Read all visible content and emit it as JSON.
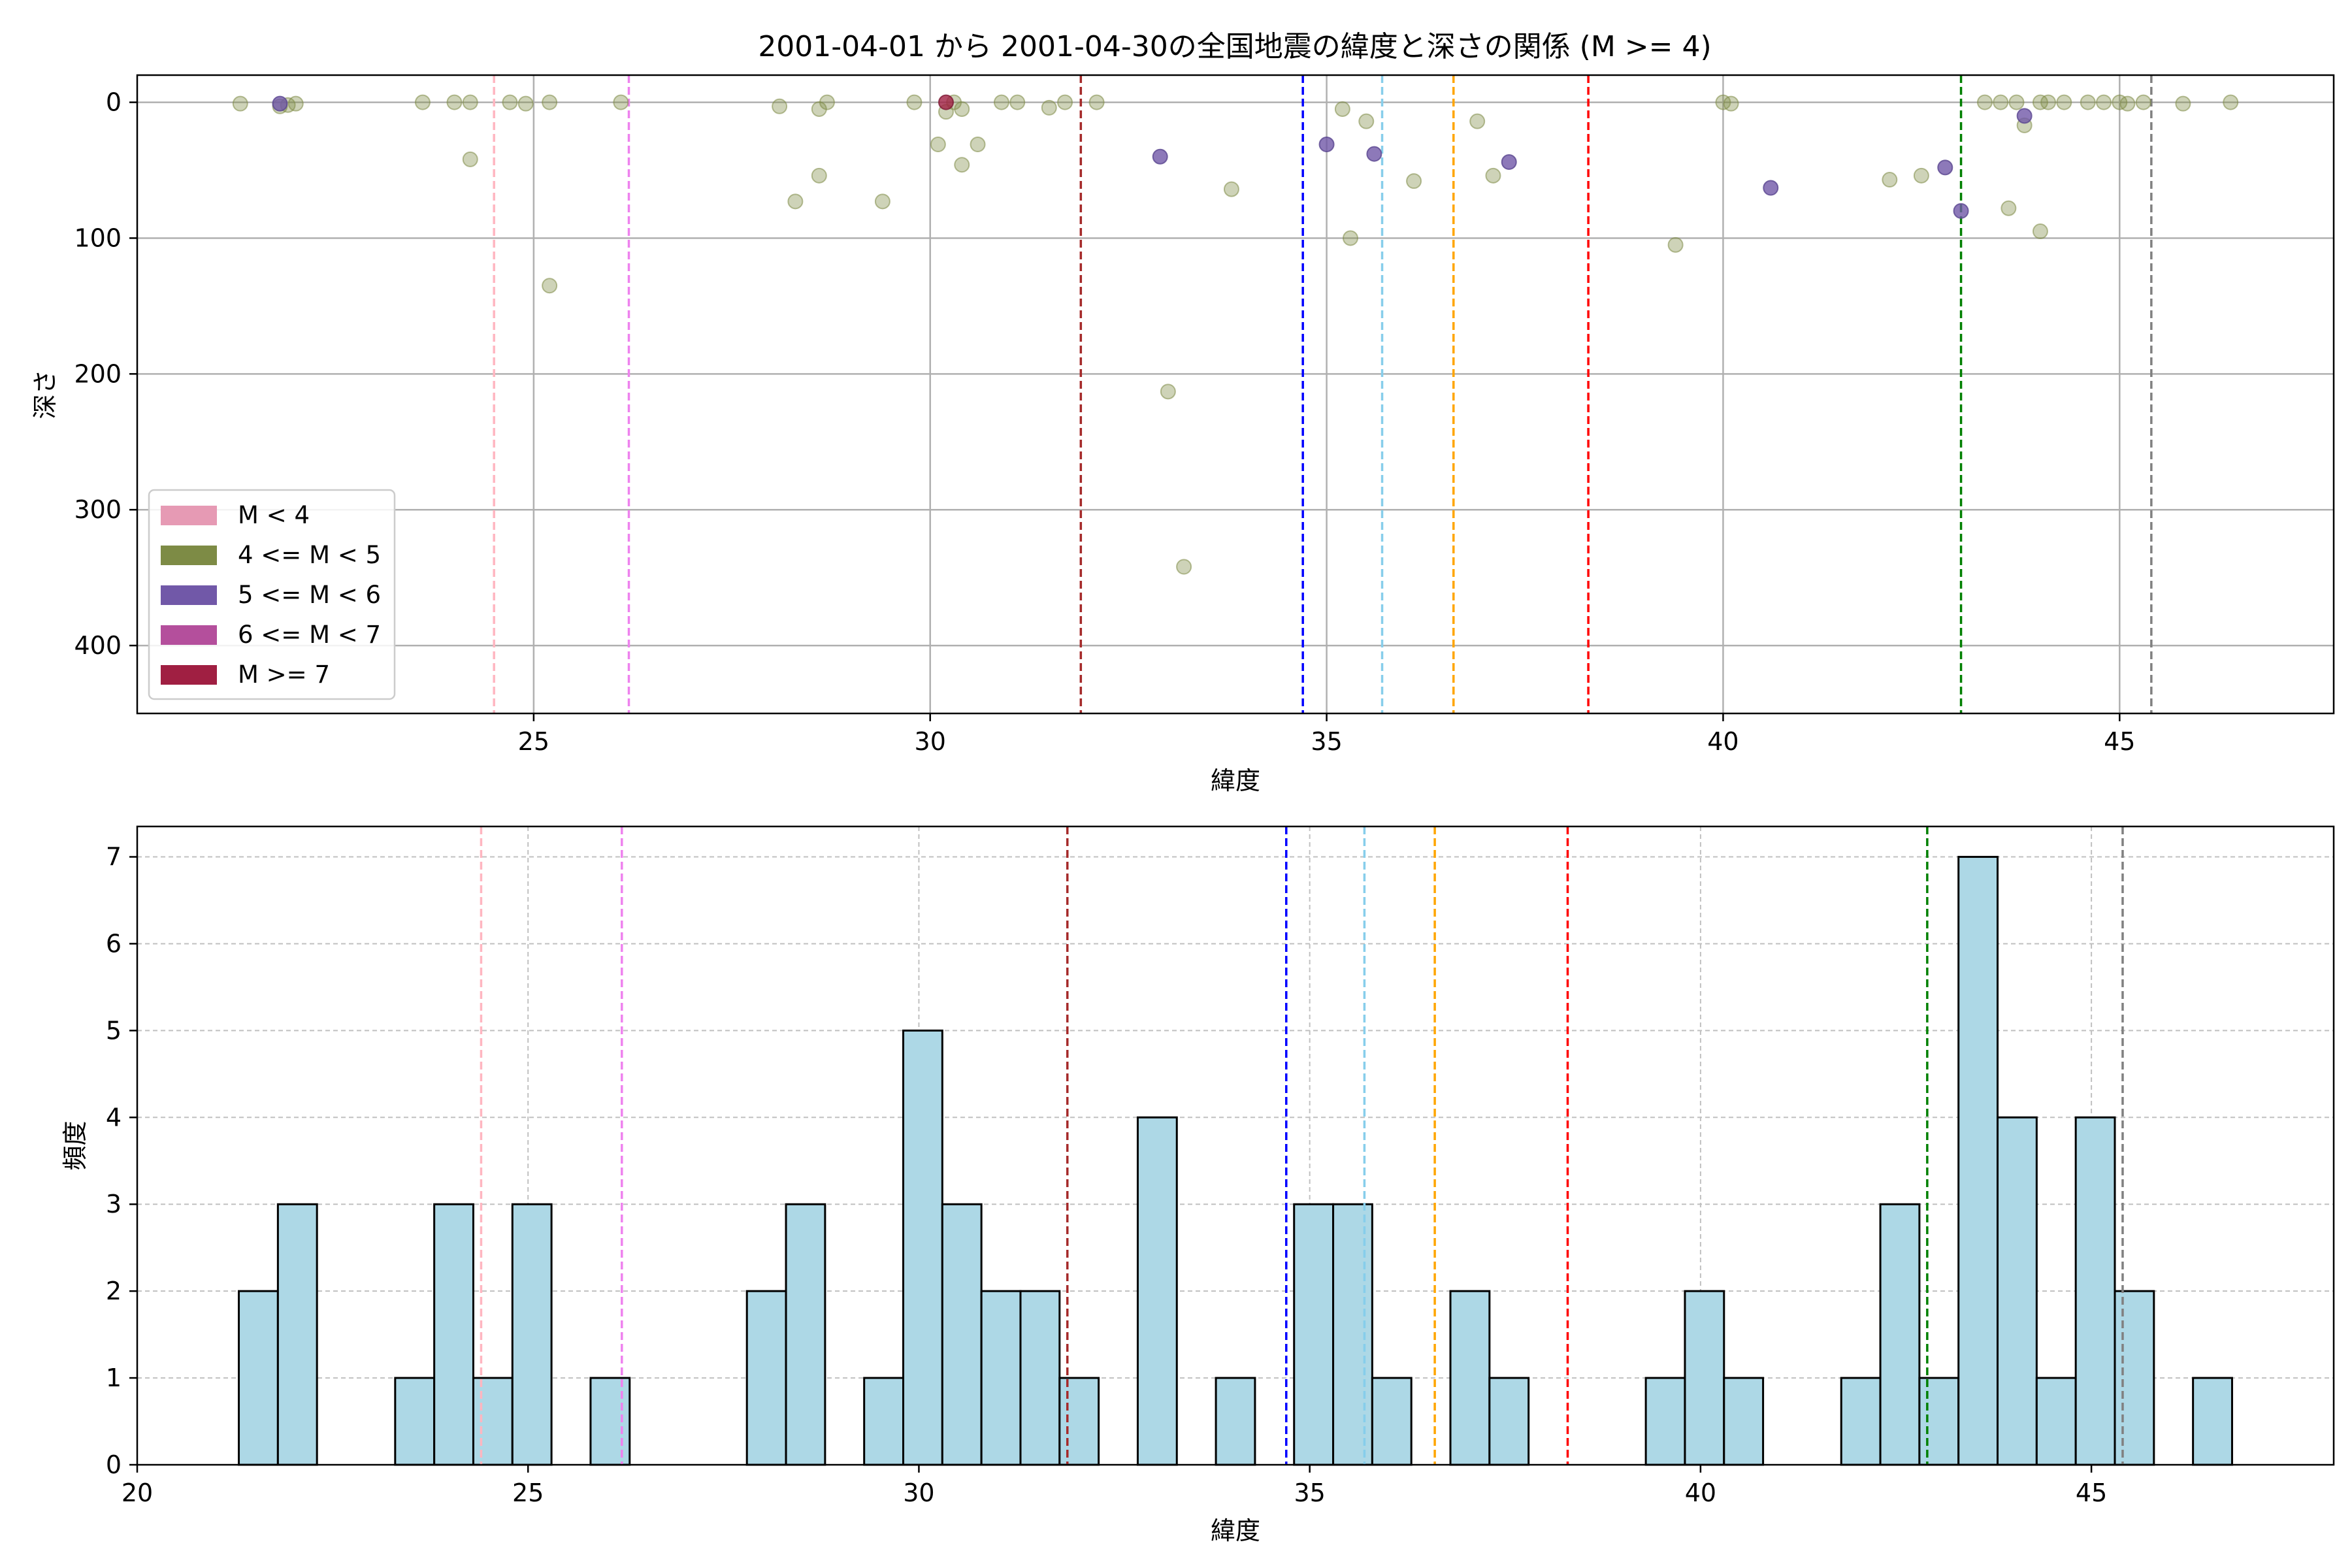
{
  "figure": {
    "title": "2001-04-01 から 2001-04-30の全国地震の緯度と深さの関係 (M >= 4)"
  },
  "chart_data": [
    {
      "type": "scatter",
      "xlabel": "緯度",
      "ylabel": "深さ",
      "xlim": [
        20.0,
        47.7
      ],
      "ylim": [
        450,
        -20
      ],
      "y_inverted": true,
      "xticks": [
        25,
        30,
        35,
        40,
        45
      ],
      "yticks": [
        0,
        100,
        200,
        300,
        400
      ],
      "grid": true,
      "legend_position": "lower-left",
      "legend": [
        {
          "label": "M < 4",
          "color": "#e69ab4"
        },
        {
          "label": "4 <= M < 5",
          "color": "#7d8b45"
        },
        {
          "label": "5 <= M < 6",
          "color": "#7158a8"
        },
        {
          "label": "6 <= M < 7",
          "color": "#b44f9c"
        },
        {
          "label": "M >= 7",
          "color": "#a01f42"
        }
      ],
      "reference_lines": [
        {
          "x": 24.5,
          "color": "#ffb6c1"
        },
        {
          "x": 26.2,
          "color": "#ee82ee"
        },
        {
          "x": 31.9,
          "color": "#a52a2a"
        },
        {
          "x": 34.7,
          "color": "#0000ff"
        },
        {
          "x": 35.7,
          "color": "#87ceeb"
        },
        {
          "x": 36.6,
          "color": "#ffa500"
        },
        {
          "x": 38.3,
          "color": "#ff0000"
        },
        {
          "x": 43.0,
          "color": "#008000"
        },
        {
          "x": 45.4,
          "color": "#808080"
        }
      ],
      "points_m4": [
        [
          21.3,
          1
        ],
        [
          21.8,
          3
        ],
        [
          21.9,
          2
        ],
        [
          22.0,
          1
        ],
        [
          23.6,
          0
        ],
        [
          24.0,
          0
        ],
        [
          24.2,
          0
        ],
        [
          24.2,
          42
        ],
        [
          25.2,
          135
        ],
        [
          24.7,
          0
        ],
        [
          24.9,
          1
        ],
        [
          25.2,
          0
        ],
        [
          26.1,
          0
        ],
        [
          28.1,
          3
        ],
        [
          28.6,
          5
        ],
        [
          28.7,
          0
        ],
        [
          28.6,
          54
        ],
        [
          28.3,
          73
        ],
        [
          29.4,
          73
        ],
        [
          29.8,
          0
        ],
        [
          30.2,
          7
        ],
        [
          30.3,
          0
        ],
        [
          30.4,
          5
        ],
        [
          30.1,
          31
        ],
        [
          30.4,
          46
        ],
        [
          30.6,
          31
        ],
        [
          30.9,
          0
        ],
        [
          31.1,
          0
        ],
        [
          31.5,
          4
        ],
        [
          31.7,
          0
        ],
        [
          32.1,
          0
        ],
        [
          33.0,
          213
        ],
        [
          33.2,
          342
        ],
        [
          33.8,
          64
        ],
        [
          35.2,
          5
        ],
        [
          35.3,
          100
        ],
        [
          35.5,
          14
        ],
        [
          36.1,
          58
        ],
        [
          36.9,
          14
        ],
        [
          37.1,
          54
        ],
        [
          39.4,
          105
        ],
        [
          40.0,
          0
        ],
        [
          40.1,
          1
        ],
        [
          42.1,
          57
        ],
        [
          42.5,
          54
        ],
        [
          43.3,
          0
        ],
        [
          43.5,
          0
        ],
        [
          43.7,
          0
        ],
        [
          43.8,
          17
        ],
        [
          43.6,
          78
        ],
        [
          44.0,
          95
        ],
        [
          44.0,
          0
        ],
        [
          44.1,
          0
        ],
        [
          44.3,
          0
        ],
        [
          44.6,
          0
        ],
        [
          44.8,
          0
        ],
        [
          45.0,
          0
        ],
        [
          45.1,
          1
        ],
        [
          45.3,
          0
        ],
        [
          45.8,
          1
        ],
        [
          46.4,
          0
        ]
      ],
      "points_m5": [
        [
          21.8,
          1
        ],
        [
          32.9,
          40
        ],
        [
          35.0,
          31
        ],
        [
          35.6,
          38
        ],
        [
          37.3,
          44
        ],
        [
          40.6,
          63
        ],
        [
          42.8,
          48
        ],
        [
          43.0,
          80
        ],
        [
          43.8,
          10
        ]
      ],
      "points_m7": [
        [
          30.2,
          0
        ]
      ]
    },
    {
      "type": "bar",
      "xlabel": "緯度",
      "ylabel": "頻度",
      "xlim": [
        20,
        48.1
      ],
      "ylim": [
        0,
        7.35
      ],
      "xticks": [
        20,
        25,
        30,
        35,
        40,
        45
      ],
      "yticks": [
        0,
        1,
        2,
        3,
        4,
        5,
        6,
        7
      ],
      "grid": true,
      "bar_color": "#add8e6",
      "bin_width": 0.5,
      "bins": [
        [
          21.3,
          2
        ],
        [
          21.8,
          3
        ],
        [
          23.3,
          1
        ],
        [
          23.8,
          3
        ],
        [
          24.3,
          1
        ],
        [
          24.8,
          3
        ],
        [
          25.8,
          1
        ],
        [
          27.8,
          2
        ],
        [
          28.3,
          3
        ],
        [
          29.3,
          1
        ],
        [
          29.8,
          5
        ],
        [
          30.3,
          3
        ],
        [
          30.8,
          2
        ],
        [
          31.3,
          2
        ],
        [
          31.8,
          1
        ],
        [
          32.8,
          4
        ],
        [
          33.8,
          1
        ],
        [
          34.8,
          3
        ],
        [
          35.3,
          3
        ],
        [
          35.8,
          1
        ],
        [
          36.8,
          2
        ],
        [
          37.3,
          1
        ],
        [
          39.3,
          1
        ],
        [
          39.8,
          2
        ],
        [
          40.3,
          1
        ],
        [
          41.8,
          1
        ],
        [
          42.3,
          3
        ],
        [
          42.8,
          1
        ],
        [
          43.3,
          7
        ],
        [
          43.8,
          4
        ],
        [
          44.3,
          1
        ],
        [
          44.8,
          4
        ],
        [
          45.3,
          2
        ],
        [
          46.3,
          1
        ]
      ],
      "reference_lines": [
        {
          "x": 24.4,
          "color": "#ffb6c1"
        },
        {
          "x": 26.2,
          "color": "#ee82ee"
        },
        {
          "x": 31.9,
          "color": "#a52a2a"
        },
        {
          "x": 34.7,
          "color": "#0000ff"
        },
        {
          "x": 35.7,
          "color": "#87ceeb"
        },
        {
          "x": 36.6,
          "color": "#ffa500"
        },
        {
          "x": 38.3,
          "color": "#ff0000"
        },
        {
          "x": 42.9,
          "color": "#008000"
        },
        {
          "x": 45.4,
          "color": "#808080"
        }
      ]
    }
  ]
}
